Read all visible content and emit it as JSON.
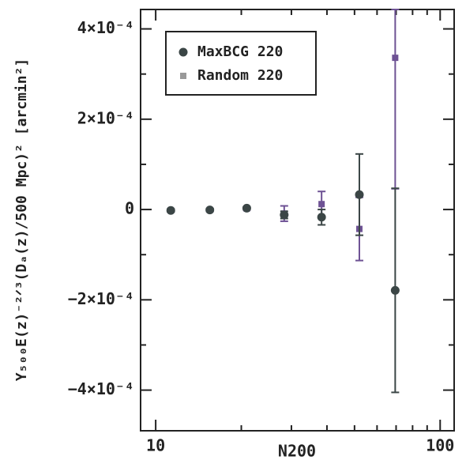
{
  "chart_data": {
    "type": "scatter",
    "x_label": "N200",
    "y_label": "Y₅₀₀E(z)⁻²ᐟ³(Dₐ(z)/500 Mpc)² [arcmin²]",
    "x": [
      11.3,
      15.5,
      20.9,
      28.3,
      38.3,
      52,
      69.5
    ],
    "xlim": [
      8.85,
      112
    ],
    "xscale": "log",
    "xticks": [
      10,
      100
    ],
    "xminorticks": [
      20,
      30,
      40,
      50,
      60,
      70,
      80,
      90
    ],
    "ylim": [
      -0.00049,
      0.000443
    ],
    "yticks": [
      {
        "value": -0.0004,
        "label": "−4×10⁻⁴"
      },
      {
        "value": -0.0002,
        "label": "−2×10⁻⁴"
      },
      0,
      {
        "value": 0.0002,
        "label": "2×10⁻⁴"
      },
      {
        "value": 0.0004,
        "label": "4×10⁻⁴"
      }
    ],
    "yminorticks": [
      -0.0003,
      -0.0001,
      0.0001,
      0.0003
    ],
    "legend": "upper left",
    "series": [
      {
        "name": "MaxBCG 220",
        "color": "#3b4646",
        "values": [
          -2e-06,
          -1e-06,
          3e-06,
          -1.2e-05,
          -1.7e-05,
          3.3e-05,
          -0.000179
        ],
        "errors": [
          3e-06,
          3e-06,
          3e-06,
          8e-06,
          1.7e-05,
          9e-05,
          0.000226
        ]
      },
      {
        "name": "Random 220",
        "color": "#6e5294",
        "values": [
          -2e-06,
          -1e-06,
          2e-06,
          -9e-06,
          1.2e-05,
          -4.3e-05,
          0.000336
        ],
        "errors": [
          3e-06,
          3e-06,
          3e-06,
          1.7e-05,
          2.8e-05,
          7e-05,
          0.00029
        ]
      }
    ]
  }
}
